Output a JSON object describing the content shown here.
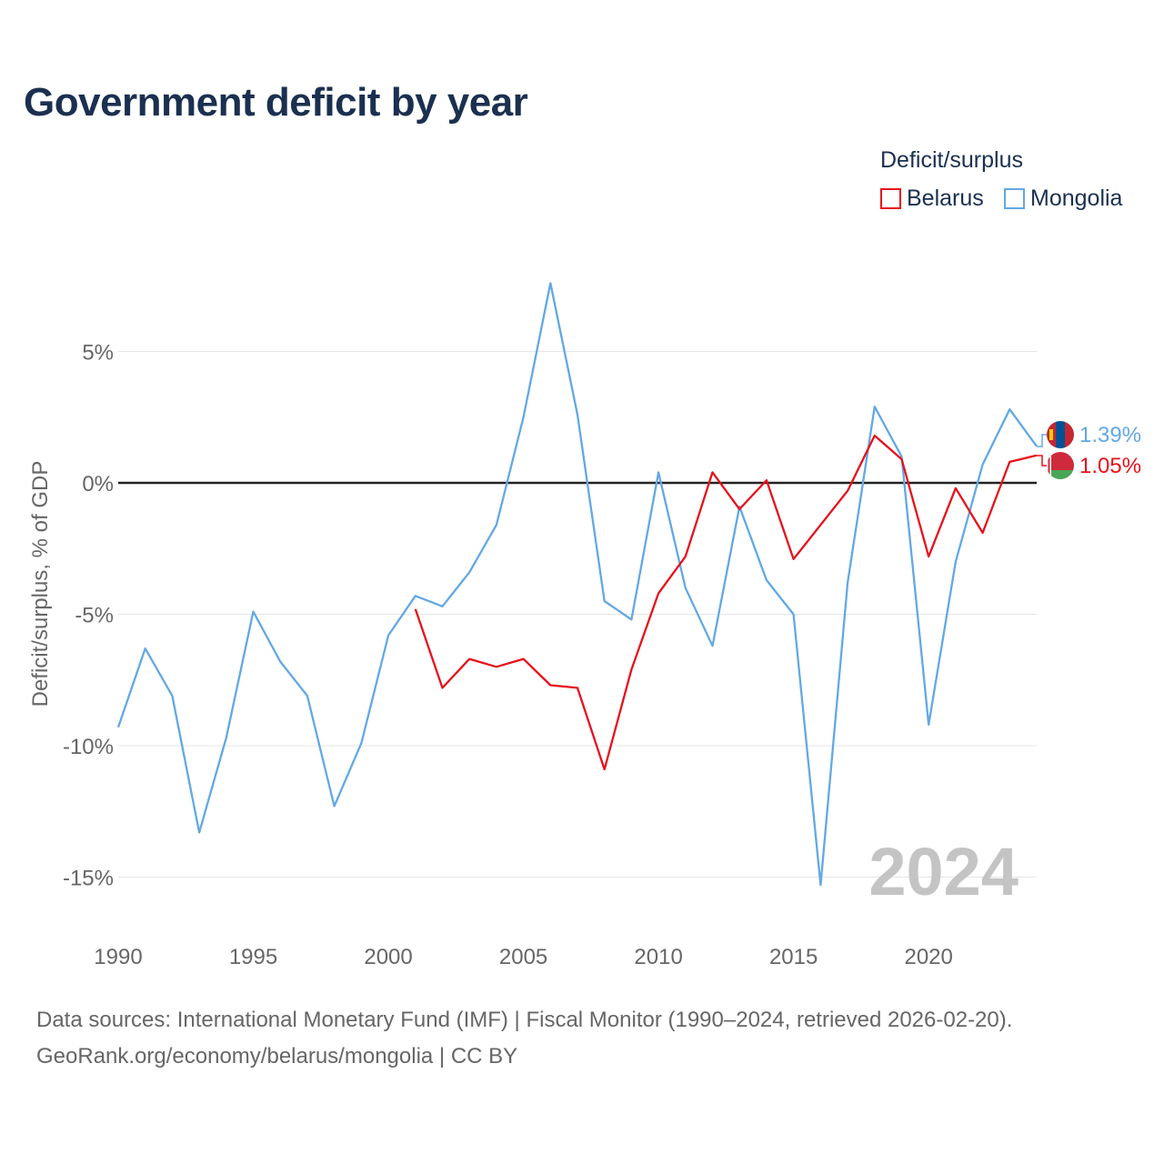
{
  "title": "Government deficit by year",
  "legend": {
    "title": "Deficit/surplus",
    "items": [
      {
        "label": "Belarus",
        "color": "#e8101a"
      },
      {
        "label": "Mongolia",
        "color": "#62a8e5"
      }
    ]
  },
  "footer": {
    "line1": "Data sources: International Monetary Fund (IMF) | Fiscal Monitor (1990–2024, retrieved 2026-02-20).",
    "line2": "GeoRank.org/economy/belarus/mongolia | CC BY"
  },
  "chart_data": {
    "type": "line",
    "title": "Government deficit by year",
    "xlabel": "",
    "ylabel": "Deficit/surplus, % of GDP",
    "xlim": [
      1990,
      2024
    ],
    "ylim": [
      -16,
      8
    ],
    "x_ticks": [
      1990,
      1995,
      2000,
      2005,
      2010,
      2015,
      2020
    ],
    "y_ticks": [
      {
        "value": 5,
        "label": "5%"
      },
      {
        "value": 0,
        "label": "0%"
      },
      {
        "value": -5,
        "label": "-5%"
      },
      {
        "value": -10,
        "label": "-10%"
      },
      {
        "value": -15,
        "label": "-15%"
      }
    ],
    "grid": true,
    "year_watermark": "2024",
    "series": [
      {
        "name": "Mongolia",
        "color": "#62a8e5",
        "end_label": "1.39%",
        "flag": "mongolia",
        "points": [
          [
            1990,
            -9.3
          ],
          [
            1991,
            -6.3
          ],
          [
            1992,
            -8.1
          ],
          [
            1993,
            -13.3
          ],
          [
            1994,
            -9.7
          ],
          [
            1995,
            -4.9
          ],
          [
            1996,
            -6.8
          ],
          [
            1997,
            -8.1
          ],
          [
            1998,
            -12.3
          ],
          [
            1999,
            -9.9
          ],
          [
            2000,
            -5.8
          ],
          [
            2001,
            -4.3
          ],
          [
            2002,
            -4.7
          ],
          [
            2003,
            -3.4
          ],
          [
            2004,
            -1.6
          ],
          [
            2005,
            2.5
          ],
          [
            2006,
            7.6
          ],
          [
            2007,
            2.6
          ],
          [
            2008,
            -4.5
          ],
          [
            2009,
            -5.2
          ],
          [
            2010,
            0.4
          ],
          [
            2011,
            -4.0
          ],
          [
            2012,
            -6.2
          ],
          [
            2013,
            -0.9
          ],
          [
            2014,
            -3.7
          ],
          [
            2015,
            -5.0
          ],
          [
            2016,
            -15.3
          ],
          [
            2017,
            -3.8
          ],
          [
            2018,
            2.9
          ],
          [
            2019,
            1.0
          ],
          [
            2020,
            -9.2
          ],
          [
            2021,
            -3.0
          ],
          [
            2022,
            0.7
          ],
          [
            2023,
            2.8
          ],
          [
            2024,
            1.39
          ]
        ]
      },
      {
        "name": "Belarus",
        "color": "#e8101a",
        "end_label": "1.05%",
        "flag": "belarus",
        "points": [
          [
            2001,
            -4.8
          ],
          [
            2002,
            -7.8
          ],
          [
            2003,
            -6.7
          ],
          [
            2004,
            -7.0
          ],
          [
            2005,
            -6.7
          ],
          [
            2006,
            -7.7
          ],
          [
            2007,
            -7.8
          ],
          [
            2008,
            -10.9
          ],
          [
            2009,
            -7.1
          ],
          [
            2010,
            -4.2
          ],
          [
            2011,
            -2.8
          ],
          [
            2012,
            0.4
          ],
          [
            2013,
            -1.0
          ],
          [
            2014,
            0.1
          ],
          [
            2015,
            -2.9
          ],
          [
            2016,
            -1.6
          ],
          [
            2017,
            -0.3
          ],
          [
            2018,
            1.8
          ],
          [
            2019,
            0.9
          ],
          [
            2020,
            -2.8
          ],
          [
            2021,
            -0.2
          ],
          [
            2022,
            -1.9
          ],
          [
            2023,
            0.8
          ],
          [
            2024,
            1.05
          ]
        ]
      }
    ]
  }
}
